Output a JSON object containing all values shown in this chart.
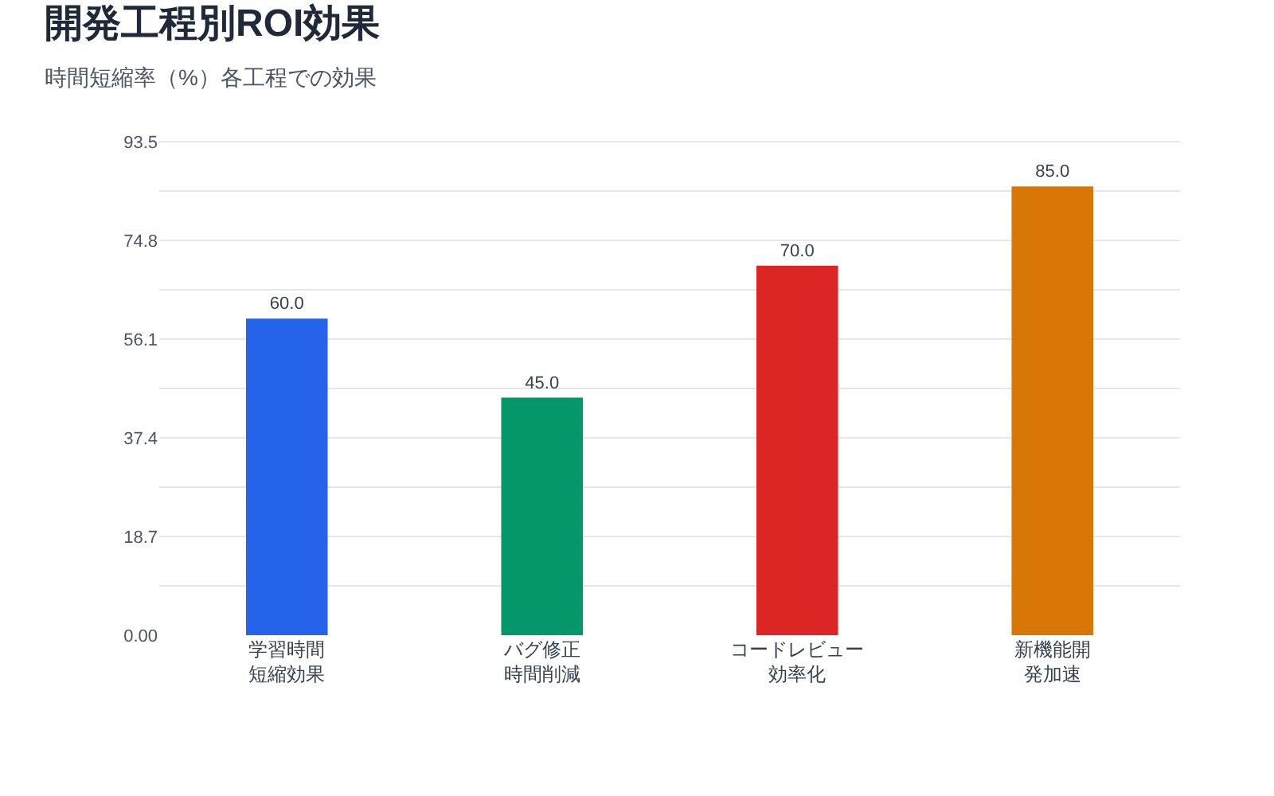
{
  "chart_data": {
    "type": "bar",
    "title": "開発工程別ROI効果",
    "subtitle": "時間短縮率（%）各工程での効果",
    "categories": [
      "学習時間短縮効果",
      "バグ修正時間削減",
      "コードレビュー効率化",
      "新機能開発加速"
    ],
    "values": [
      60.0,
      45.0,
      70.0,
      85.0
    ],
    "colors": [
      "#2563eb",
      "#059669",
      "#dc2626",
      "#d97706"
    ],
    "value_labels": [
      "60.0",
      "45.0",
      "70.0",
      "85.0"
    ],
    "ylim": [
      0,
      93.5
    ],
    "yticks": [
      {
        "value": 0,
        "label": "0.00"
      },
      {
        "value": 9.35,
        "label": null
      },
      18.7,
      {
        "value": 28.05,
        "label": null
      },
      37.4,
      {
        "value": 46.75,
        "label": null
      },
      56.1,
      {
        "value": 65.45,
        "label": null
      },
      74.8,
      {
        "value": 84.15,
        "label": null
      },
      93.5
    ],
    "grid": "y"
  }
}
